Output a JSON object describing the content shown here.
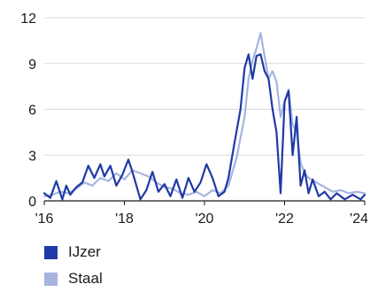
{
  "chart_data": {
    "type": "line",
    "title": "",
    "xlabel": "",
    "ylabel": "",
    "ylim": [
      0,
      12
    ],
    "xlim": [
      2016,
      2024
    ],
    "y_ticks": [
      "0",
      "3",
      "6",
      "9",
      "12"
    ],
    "x_ticks": [
      "'16",
      "'18",
      "'20",
      "'22",
      "'24"
    ],
    "grid": "horizontal",
    "legend_position": "bottom-left",
    "series": [
      {
        "name": "IJzer",
        "color": "#1f3aa6",
        "x": [
          2016.0,
          2016.15,
          2016.3,
          2016.45,
          2016.55,
          2016.65,
          2016.8,
          2016.95,
          2017.1,
          2017.25,
          2017.4,
          2017.5,
          2017.65,
          2017.8,
          2017.95,
          2018.1,
          2018.2,
          2018.3,
          2018.4,
          2018.55,
          2018.7,
          2018.85,
          2019.0,
          2019.15,
          2019.3,
          2019.45,
          2019.6,
          2019.75,
          2019.9,
          2020.05,
          2020.2,
          2020.35,
          2020.5,
          2020.6,
          2020.75,
          2020.9,
          2021.0,
          2021.1,
          2021.2,
          2021.3,
          2021.4,
          2021.5,
          2021.6,
          2021.7,
          2021.8,
          2021.9,
          2022.0,
          2022.1,
          2022.2,
          2022.3,
          2022.4,
          2022.5,
          2022.6,
          2022.7,
          2022.85,
          2023.0,
          2023.15,
          2023.3,
          2023.5,
          2023.7,
          2023.9,
          2024.0
        ],
        "values": [
          0.5,
          0.2,
          1.3,
          0.1,
          1.0,
          0.4,
          0.9,
          1.2,
          2.3,
          1.5,
          2.4,
          1.6,
          2.3,
          1.0,
          1.7,
          2.7,
          1.9,
          1.0,
          0.1,
          0.7,
          1.9,
          0.6,
          1.1,
          0.3,
          1.4,
          0.2,
          1.5,
          0.6,
          1.2,
          2.4,
          1.5,
          0.3,
          0.6,
          1.5,
          3.8,
          6.0,
          8.7,
          9.6,
          8.0,
          9.5,
          9.6,
          8.5,
          8.0,
          6.0,
          4.5,
          0.5,
          6.5,
          7.2,
          3.0,
          5.5,
          1.0,
          2.0,
          0.5,
          1.4,
          0.3,
          0.6,
          0.1,
          0.5,
          0.1,
          0.4,
          0.1,
          0.4
        ]
      },
      {
        "name": "Staal",
        "color": "#a8b4e0",
        "x": [
          2016.0,
          2016.2,
          2016.4,
          2016.6,
          2016.8,
          2017.0,
          2017.2,
          2017.4,
          2017.6,
          2017.8,
          2018.0,
          2018.2,
          2018.4,
          2018.6,
          2018.8,
          2019.0,
          2019.2,
          2019.4,
          2019.6,
          2019.8,
          2020.0,
          2020.2,
          2020.4,
          2020.6,
          2020.8,
          2021.0,
          2021.1,
          2021.2,
          2021.3,
          2021.4,
          2021.5,
          2021.6,
          2021.7,
          2021.8,
          2021.9,
          2022.0,
          2022.1,
          2022.2,
          2022.3,
          2022.4,
          2022.5,
          2022.6,
          2022.8,
          2023.0,
          2023.2,
          2023.4,
          2023.6,
          2023.8,
          2024.0
        ],
        "values": [
          0.3,
          0.4,
          0.6,
          0.5,
          0.8,
          1.2,
          1.0,
          1.5,
          1.3,
          1.8,
          1.4,
          2.0,
          1.8,
          1.6,
          1.2,
          0.9,
          0.8,
          0.5,
          0.4,
          0.6,
          0.3,
          0.7,
          0.5,
          1.0,
          2.8,
          5.5,
          8.0,
          9.2,
          10.0,
          11.0,
          9.5,
          8.0,
          8.5,
          7.8,
          5.5,
          6.5,
          7.3,
          5.0,
          4.5,
          2.5,
          1.8,
          1.5,
          1.2,
          0.9,
          0.6,
          0.7,
          0.5,
          0.6,
          0.5
        ]
      }
    ]
  }
}
